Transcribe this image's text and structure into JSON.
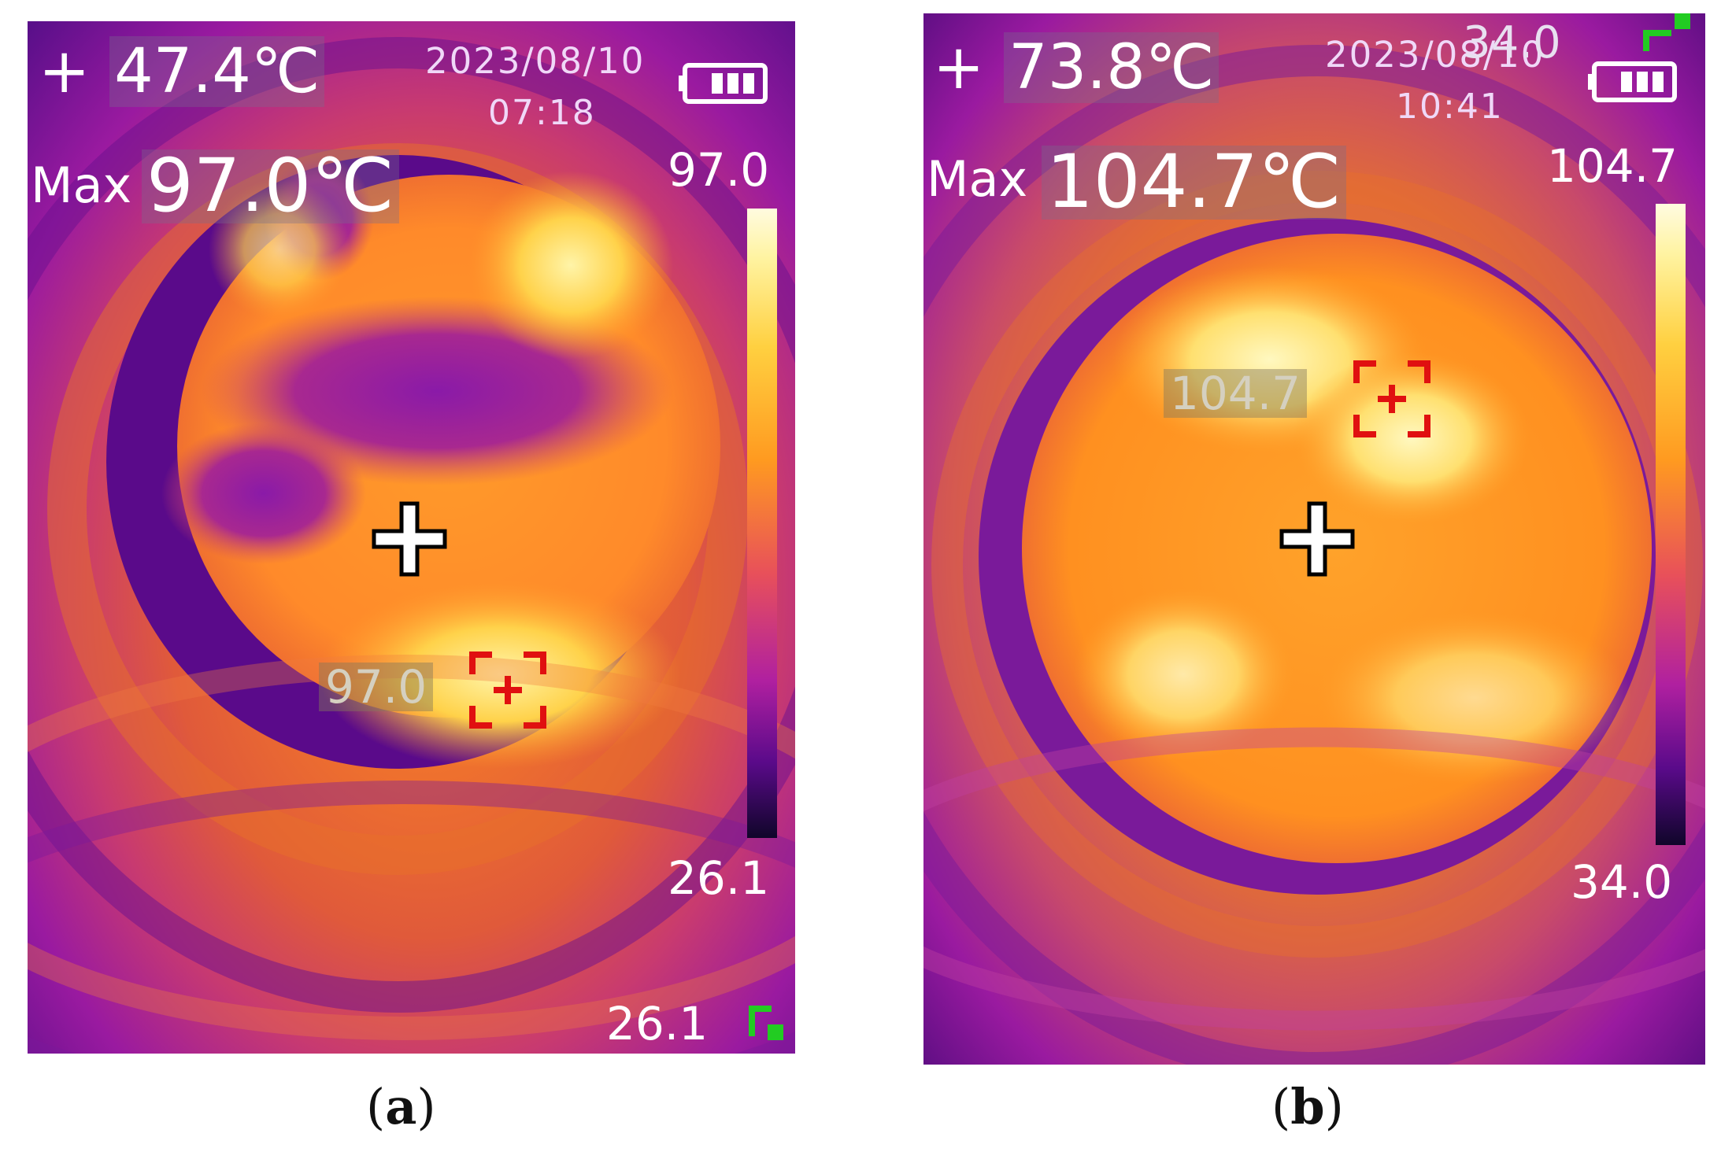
{
  "panels": [
    {
      "id": "a",
      "center_temp": "47.4℃",
      "date": "2023/08/10",
      "time": "07:18",
      "max_label": "Max",
      "max_temp": "97.0℃",
      "scale_max": "97.0",
      "scale_min": "26.1",
      "spot_value": "97.0",
      "corner_value": "26.1",
      "caption_letter": "a"
    },
    {
      "id": "b",
      "center_temp": "73.8℃",
      "date": "2023/08/10",
      "time": "10:41",
      "max_label": "Max",
      "max_temp": "104.7℃",
      "scale_max": "104.7",
      "scale_min": "34.0",
      "spot_value": "104.7",
      "corner_value": "34.0",
      "caption_letter": "b"
    }
  ],
  "symbols": {
    "plus": "+",
    "paren_open": "(",
    "paren_close": ")"
  },
  "icons": [
    "center-crosshair-icon",
    "max-spot-marker-icon",
    "battery-icon",
    "corner-bracket-icon"
  ],
  "colors": {
    "spot_marker": "#e01010",
    "corner_icon": "#22cc22",
    "text": "#ffffff"
  }
}
